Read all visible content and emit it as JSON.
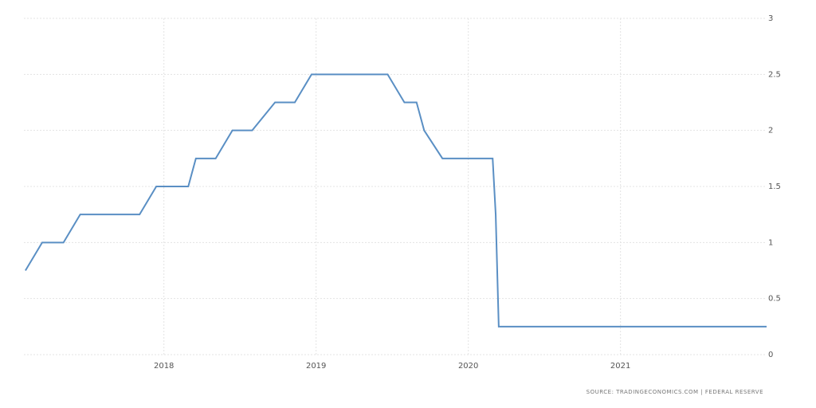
{
  "chart_data": {
    "type": "line",
    "source": "SOURCE: TRADINGECONOMICS.COM | FEDERAL RESERVE",
    "x": [
      2017.09,
      2017.2,
      2017.34,
      2017.45,
      2017.84,
      2017.95,
      2018.16,
      2018.21,
      2018.34,
      2018.45,
      2018.58,
      2018.73,
      2018.86,
      2018.97,
      2019.47,
      2019.58,
      2019.66,
      2019.71,
      2019.83,
      2020.16,
      2020.18,
      2020.2,
      2021.96
    ],
    "series": [
      {
        "color": "#5a8fc4",
        "values": [
          0.75,
          1,
          1,
          1.25,
          1.25,
          1.5,
          1.5,
          1.75,
          1.75,
          2,
          2,
          2.25,
          2.25,
          2.5,
          2.5,
          2.25,
          2.25,
          2,
          1.75,
          1.75,
          1.25,
          0.25,
          0.25
        ]
      }
    ],
    "xlim": [
      2017.08,
      2021.96
    ],
    "xticks": [
      2018,
      2019,
      2020,
      2021
    ],
    "ylim": [
      0,
      3
    ],
    "yticks": [
      0,
      0.5,
      1,
      1.5,
      2,
      2.5,
      3
    ],
    "grid": true
  }
}
